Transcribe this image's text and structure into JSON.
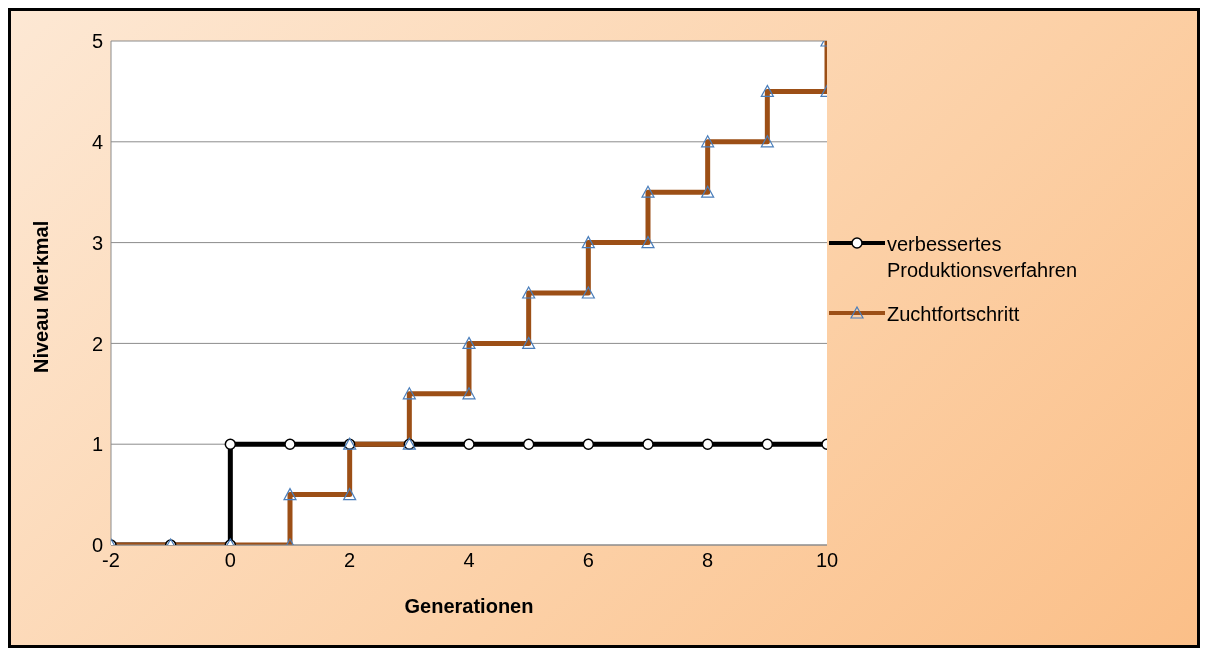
{
  "chart_data": {
    "type": "line",
    "xlabel": "Generationen",
    "ylabel": "Niveau Merkmal",
    "xlim": [
      -2,
      10
    ],
    "xticks": [
      -2,
      0,
      2,
      4,
      6,
      8,
      10
    ],
    "ylim": [
      0,
      5
    ],
    "yticks": [
      0,
      1,
      2,
      3,
      4,
      5
    ],
    "grid": "y",
    "legend": "right",
    "line_style": "solid",
    "series": [
      {
        "name": "verbessertes Produktionsverfahren",
        "color": "#000000",
        "marker": "circle",
        "x": [
          -2,
          -1,
          0,
          0,
          1,
          2,
          3,
          4,
          5,
          6,
          7,
          8,
          9,
          10
        ],
        "values": [
          0,
          0,
          0,
          1,
          1,
          1,
          1,
          1,
          1,
          1,
          1,
          1,
          1,
          1
        ]
      },
      {
        "name": "Zuchtfortschritt",
        "color": "#9c4f16",
        "marker": "triangle",
        "x": [
          -2,
          -1,
          0,
          1,
          1,
          2,
          2,
          3,
          3,
          4,
          4,
          5,
          5,
          6,
          6,
          7,
          7,
          8,
          8,
          9,
          9,
          10,
          10
        ],
        "values": [
          0,
          0,
          0,
          0,
          0.5,
          0.5,
          1,
          1,
          1.5,
          1.5,
          2,
          2,
          2.5,
          2.5,
          3,
          3,
          3.5,
          3.5,
          4,
          4,
          4.5,
          4.5,
          5
        ]
      }
    ]
  }
}
